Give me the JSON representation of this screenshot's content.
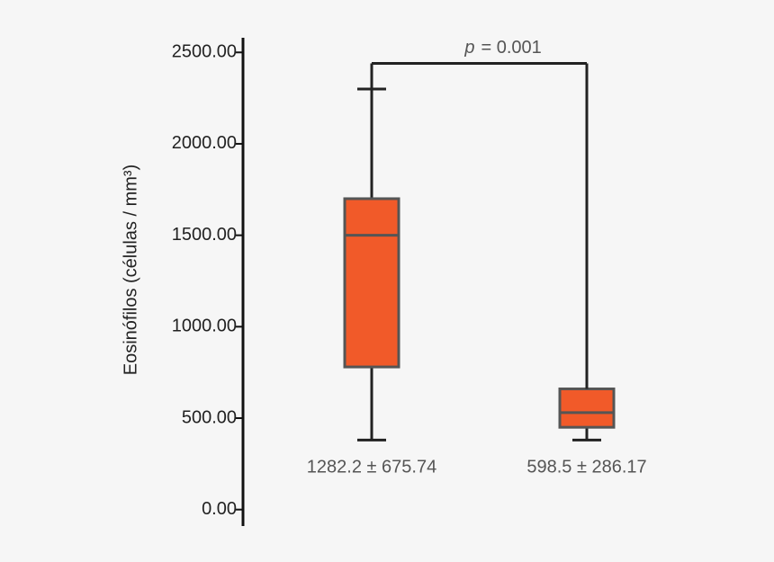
{
  "chart_data": {
    "type": "box",
    "y_label": "Eosinófilos (células / mm³)",
    "categories": [
      "1282.2 ± 675.74",
      "598.5 ± 286.17"
    ],
    "boxes": [
      {
        "whisker_low": 380,
        "q1": 780,
        "median": 1500,
        "q3": 1700,
        "whisker_high": 2300
      },
      {
        "whisker_low": 380,
        "q1": 450,
        "median": 530,
        "q3": 660,
        "whisker_high": 660
      }
    ],
    "color": "#f15a29",
    "ylim": [
      -90,
      2580
    ],
    "yticks": [
      {
        "value": 0,
        "label": "0.00"
      },
      {
        "value": 500,
        "label": "500.00"
      },
      {
        "value": 1000,
        "label": "1000.00"
      },
      {
        "value": 1500,
        "label": "1500.00"
      },
      {
        "value": 2000,
        "label": "2000.00"
      },
      {
        "value": 2500,
        "label": "2500.00"
      }
    ],
    "bracket": {
      "value": 2440,
      "label_italic": "p",
      "label": "= 0.001"
    }
  }
}
